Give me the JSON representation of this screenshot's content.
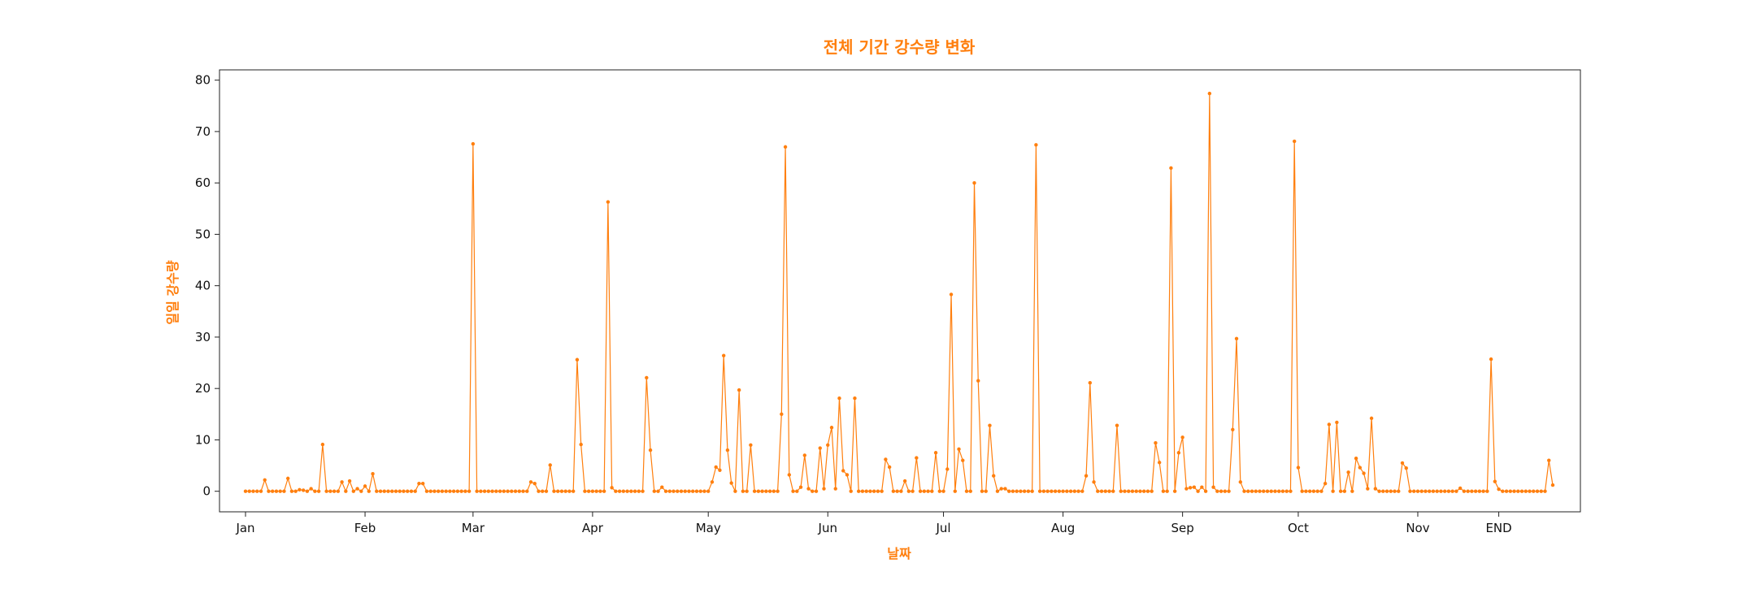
{
  "chart_data": {
    "type": "line",
    "title": "전체 기간 강수량 변화",
    "xlabel": "날짜",
    "ylabel": "일일 강수량",
    "color": "#ff7f0e",
    "ylim": [
      -4,
      82
    ],
    "yticks": [
      0,
      10,
      20,
      30,
      40,
      50,
      60,
      70,
      80
    ],
    "xticks": [
      {
        "label": "Jan",
        "day": 0
      },
      {
        "label": "Feb",
        "day": 31
      },
      {
        "label": "Mar",
        "day": 59
      },
      {
        "label": "Apr",
        "day": 90
      },
      {
        "label": "May",
        "day": 120
      },
      {
        "label": "Jun",
        "day": 151
      },
      {
        "label": "Jul",
        "day": 181
      },
      {
        "label": "Aug",
        "day": 212
      },
      {
        "label": "Sep",
        "day": 243
      },
      {
        "label": "Oct",
        "day": 273
      },
      {
        "label": "Nov",
        "day": 304
      },
      {
        "label": "END",
        "day": 325
      }
    ],
    "series": [
      {
        "values": [
          0,
          0,
          0,
          0,
          0,
          2.2,
          0,
          0,
          0,
          0,
          0,
          2.5,
          0,
          0,
          0.3,
          0.2,
          0,
          0.5,
          0,
          0,
          9.1,
          0,
          0,
          0,
          0,
          1.8,
          0,
          2,
          0,
          0.5,
          0,
          1,
          0,
          3.4,
          0,
          0,
          0,
          0,
          0,
          0,
          0,
          0,
          0,
          0,
          0,
          1.5,
          1.5,
          0,
          0,
          0,
          0,
          0,
          0,
          0,
          0,
          0,
          0,
          0,
          0,
          67.6,
          0,
          0,
          0,
          0,
          0,
          0,
          0,
          0,
          0,
          0,
          0,
          0,
          0,
          0,
          1.8,
          1.5,
          0,
          0,
          0,
          5.1,
          0,
          0,
          0,
          0,
          0,
          0,
          25.6,
          9.1,
          0,
          0,
          0,
          0,
          0,
          0,
          56.3,
          0.7,
          0,
          0,
          0,
          0,
          0,
          0,
          0,
          0,
          22.1,
          8,
          0,
          0,
          0.8,
          0,
          0,
          0,
          0,
          0,
          0,
          0,
          0,
          0,
          0,
          0,
          0,
          1.8,
          4.7,
          4.1,
          26.4,
          8,
          1.6,
          0,
          19.7,
          0,
          0,
          9,
          0,
          0,
          0,
          0,
          0,
          0,
          0,
          15,
          67,
          3.2,
          0,
          0,
          0.8,
          7,
          0.5,
          0,
          0,
          8.4,
          0.5,
          9,
          12.4,
          0.5,
          18.1,
          4,
          3.2,
          0,
          18.1,
          0,
          0,
          0,
          0,
          0,
          0,
          0,
          6.2,
          4.7,
          0,
          0,
          0,
          2,
          0,
          0,
          6.5,
          0,
          0,
          0,
          0,
          7.5,
          0,
          0,
          4.3,
          38.3,
          0,
          8.2,
          6,
          0,
          0,
          60,
          21.5,
          0,
          0,
          12.8,
          3,
          0,
          0.5,
          0.5,
          0,
          0,
          0,
          0,
          0,
          0,
          0,
          67.4,
          0,
          0,
          0,
          0,
          0,
          0,
          0,
          0,
          0,
          0,
          0,
          0,
          3,
          21.1,
          1.8,
          0,
          0,
          0,
          0,
          0,
          12.8,
          0,
          0,
          0,
          0,
          0,
          0,
          0,
          0,
          0,
          9.4,
          5.6,
          0,
          0,
          62.9,
          0,
          7.5,
          10.5,
          0.5,
          0.7,
          0.8,
          0,
          0.8,
          0,
          77.4,
          0.8,
          0,
          0,
          0,
          0,
          12,
          29.7,
          1.8,
          0,
          0,
          0,
          0,
          0,
          0,
          0,
          0,
          0,
          0,
          0,
          0,
          0,
          68.1,
          4.6,
          0,
          0,
          0,
          0,
          0,
          0,
          1.5,
          13,
          0,
          13.4,
          0,
          0,
          3.7,
          0,
          6.4,
          4.6,
          3.5,
          0.5,
          14.2,
          0.5,
          0,
          0,
          0,
          0,
          0,
          0,
          5.5,
          4.5,
          0,
          0,
          0,
          0,
          0,
          0,
          0,
          0,
          0,
          0,
          0,
          0,
          0,
          0.6,
          0,
          0,
          0,
          0,
          0,
          0,
          0,
          25.7,
          1.9,
          0.4,
          0,
          0,
          0,
          0,
          0,
          0,
          0,
          0,
          0,
          0,
          0,
          0,
          6,
          1.2
        ]
      }
    ]
  }
}
